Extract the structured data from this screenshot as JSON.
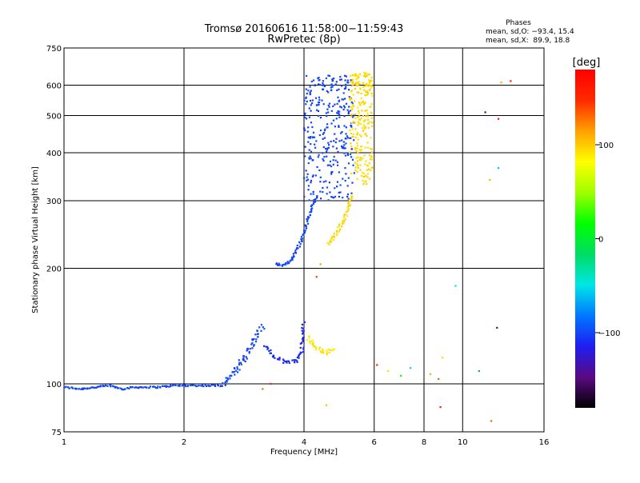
{
  "chart_data": {
    "type": "scatter",
    "title": "Tromsø 20160616 11:58:00−11:59:43",
    "subtitle": "RwPretec (8p)",
    "xlabel": "Frequency [MHz]",
    "ylabel": "Stationary phase Virtual Height [km]",
    "x_scale": "log",
    "y_scale": "log",
    "xlim": [
      1,
      16
    ],
    "ylim": [
      75,
      750
    ],
    "x_ticks": [
      1,
      2,
      4,
      6,
      8,
      10,
      16
    ],
    "x_tick_labels": [
      "1",
      "2",
      "4",
      "6",
      "8",
      "10",
      "16"
    ],
    "y_ticks": [
      75,
      100,
      200,
      300,
      400,
      500,
      600,
      750
    ],
    "y_tick_labels": [
      "75",
      "100",
      "200",
      "300",
      "400",
      "500",
      "600",
      "750"
    ],
    "grid": true,
    "stats": {
      "heading": "Phases",
      "line_o": "mean, sd,O: −93.4, 15.4",
      "line_x": "mean, sd,X:  89.9, 18.8"
    },
    "colorbar": {
      "label": "[deg]",
      "range": [
        -180,
        180
      ],
      "ticks": [
        100,
        0,
        -100
      ],
      "tick_labels": [
        "100",
        "0",
        "−100"
      ],
      "colors": [
        "#000000",
        "#5a0a82",
        "#1e1ef0",
        "#0078ff",
        "#00e6e6",
        "#00dc64",
        "#00ff00",
        "#a0ff00",
        "#ffff00",
        "#ffa000",
        "#ff2a00",
        "#ff0000"
      ]
    },
    "traces": [
      {
        "name": "O-mode E trace",
        "mode": "line-points",
        "phase": -100,
        "jitter": 0.01,
        "points": [
          [
            1.0,
            98
          ],
          [
            1.1,
            97
          ],
          [
            1.2,
            98
          ],
          [
            1.3,
            99
          ],
          [
            1.4,
            97
          ],
          [
            1.5,
            98
          ],
          [
            1.7,
            98
          ],
          [
            1.9,
            99
          ],
          [
            2.1,
            99
          ],
          [
            2.3,
            99
          ],
          [
            2.5,
            99
          ]
        ]
      },
      {
        "name": "O-mode Es rising",
        "mode": "line-points",
        "phase": -100,
        "jitter": 0.03,
        "points": [
          [
            2.5,
            100
          ],
          [
            2.7,
            108
          ],
          [
            2.85,
            118
          ],
          [
            3.0,
            130
          ],
          [
            3.15,
            142
          ]
        ]
      },
      {
        "name": "O-mode E2 cusp",
        "mode": "line-points",
        "phase": -110,
        "jitter": 0.02,
        "points": [
          [
            3.2,
            125
          ],
          [
            3.35,
            118
          ],
          [
            3.6,
            114
          ],
          [
            3.85,
            115
          ],
          [
            3.95,
            122
          ],
          [
            4.0,
            145
          ]
        ]
      },
      {
        "name": "O-mode F trace",
        "mode": "line-points",
        "phase": -100,
        "jitter": 0.015,
        "points": [
          [
            3.4,
            206
          ],
          [
            3.55,
            203
          ],
          [
            3.75,
            212
          ],
          [
            3.95,
            238
          ],
          [
            4.1,
            270
          ],
          [
            4.3,
            310
          ]
        ]
      },
      {
        "name": "O-mode F cluster",
        "mode": "cloud",
        "phase": -100,
        "count": 320,
        "x": [
          4.0,
          5.35
        ],
        "y": [
          300,
          640
        ]
      },
      {
        "name": "X-mode trace",
        "mode": "line-points",
        "phase": 95,
        "jitter": 0.02,
        "points": [
          [
            4.6,
            232
          ],
          [
            4.8,
            245
          ],
          [
            5.0,
            262
          ],
          [
            5.15,
            285
          ],
          [
            5.3,
            312
          ]
        ]
      },
      {
        "name": "X-mode E cusp",
        "mode": "line-points",
        "phase": 90,
        "jitter": 0.02,
        "points": [
          [
            4.1,
            132
          ],
          [
            4.3,
            124
          ],
          [
            4.55,
            120
          ],
          [
            4.75,
            124
          ]
        ]
      },
      {
        "name": "X-mode F cluster",
        "mode": "cloud",
        "phase": 95,
        "count": 240,
        "x": [
          5.2,
          5.95
        ],
        "y": [
          330,
          650
        ]
      }
    ],
    "scatter": [
      {
        "x": 3.3,
        "y": 100,
        "phase": 150
      },
      {
        "x": 3.15,
        "y": 97,
        "phase": 130
      },
      {
        "x": 4.55,
        "y": 88,
        "phase": 110
      },
      {
        "x": 4.3,
        "y": 190,
        "phase": 140
      },
      {
        "x": 4.4,
        "y": 205,
        "phase": 120
      },
      {
        "x": 6.1,
        "y": 112,
        "phase": 160
      },
      {
        "x": 6.5,
        "y": 108,
        "phase": 60
      },
      {
        "x": 7.0,
        "y": 105,
        "phase": 20
      },
      {
        "x": 7.4,
        "y": 110,
        "phase": -60
      },
      {
        "x": 8.3,
        "y": 106,
        "phase": 110
      },
      {
        "x": 8.7,
        "y": 103,
        "phase": 130
      },
      {
        "x": 8.8,
        "y": 87,
        "phase": 160
      },
      {
        "x": 8.9,
        "y": 117,
        "phase": 100
      },
      {
        "x": 9.6,
        "y": 180,
        "phase": -50
      },
      {
        "x": 11.0,
        "y": 108,
        "phase": -70
      },
      {
        "x": 11.4,
        "y": 510,
        "phase": -150
      },
      {
        "x": 11.7,
        "y": 340,
        "phase": 110
      },
      {
        "x": 12.3,
        "y": 490,
        "phase": 160
      },
      {
        "x": 12.3,
        "y": 365,
        "phase": -60
      },
      {
        "x": 12.5,
        "y": 610,
        "phase": 110
      },
      {
        "x": 13.2,
        "y": 615,
        "phase": 150
      },
      {
        "x": 12.2,
        "y": 140,
        "phase": -150
      },
      {
        "x": 11.8,
        "y": 80,
        "phase": 130
      }
    ]
  }
}
